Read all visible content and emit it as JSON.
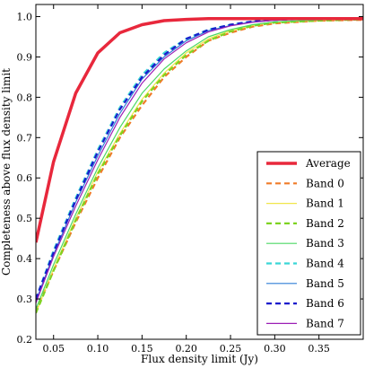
{
  "chart_data": {
    "type": "line",
    "title": "",
    "xlabel": "Flux density limit (Jy)",
    "ylabel": "Completeness above flux density limit",
    "xlim": [
      0.03,
      0.4
    ],
    "ylim": [
      0.2,
      1.03
    ],
    "x_ticks": [
      0.05,
      0.1,
      0.15,
      0.2,
      0.25,
      0.3,
      0.35
    ],
    "x_tick_labels": [
      "0.05",
      "0.10",
      "0.15",
      "0.20",
      "0.25",
      "0.30",
      "0.35"
    ],
    "y_ticks": [
      0.2,
      0.3,
      0.4,
      0.5,
      0.6,
      0.7,
      0.8,
      0.9,
      1.0
    ],
    "y_tick_labels": [
      "0.2",
      "0.3",
      "0.4",
      "0.5",
      "0.6",
      "0.7",
      "0.8",
      "0.9",
      "1.0"
    ],
    "grid": false,
    "legend_position": "bottom-right",
    "x": [
      0.03,
      0.05,
      0.075,
      0.1,
      0.125,
      0.15,
      0.175,
      0.2,
      0.225,
      0.25,
      0.275,
      0.3,
      0.35,
      0.4
    ],
    "series": [
      {
        "name": "Average",
        "color": "#e8283c",
        "style": "solid",
        "width": 3.5,
        "values": [
          0.44,
          0.64,
          0.81,
          0.91,
          0.96,
          0.98,
          0.99,
          0.993,
          0.995,
          0.995,
          0.995,
          0.995,
          0.995,
          0.995
        ]
      },
      {
        "name": "Band 0",
        "color": "#f07b28",
        "style": "dashed",
        "width": 2.2,
        "values": [
          0.27,
          0.37,
          0.49,
          0.6,
          0.7,
          0.78,
          0.85,
          0.9,
          0.94,
          0.96,
          0.975,
          0.983,
          0.99,
          0.992
        ]
      },
      {
        "name": "Band 1",
        "color": "#f0e64a",
        "style": "solid",
        "width": 1.2,
        "values": [
          0.265,
          0.375,
          0.5,
          0.615,
          0.71,
          0.795,
          0.86,
          0.91,
          0.945,
          0.965,
          0.978,
          0.986,
          0.991,
          0.993
        ]
      },
      {
        "name": "Band 2",
        "color": "#7ed321",
        "style": "dashed",
        "width": 2.2,
        "values": [
          0.265,
          0.37,
          0.495,
          0.61,
          0.705,
          0.79,
          0.855,
          0.905,
          0.94,
          0.963,
          0.977,
          0.985,
          0.99,
          0.993
        ]
      },
      {
        "name": "Band 3",
        "color": "#4cd964",
        "style": "solid",
        "width": 1.2,
        "values": [
          0.275,
          0.385,
          0.51,
          0.625,
          0.725,
          0.81,
          0.87,
          0.915,
          0.95,
          0.968,
          0.98,
          0.987,
          0.992,
          0.994
        ]
      },
      {
        "name": "Band 4",
        "color": "#3ad6d6",
        "style": "dashed",
        "width": 2.2,
        "values": [
          0.3,
          0.42,
          0.55,
          0.67,
          0.775,
          0.855,
          0.91,
          0.945,
          0.968,
          0.98,
          0.988,
          0.992,
          0.995,
          0.996
        ]
      },
      {
        "name": "Band 5",
        "color": "#2f7fd6",
        "style": "solid",
        "width": 1.2,
        "values": [
          0.295,
          0.41,
          0.54,
          0.655,
          0.76,
          0.845,
          0.9,
          0.94,
          0.965,
          0.978,
          0.987,
          0.992,
          0.995,
          0.996
        ]
      },
      {
        "name": "Band 6",
        "color": "#1a1acc",
        "style": "dashed",
        "width": 2.2,
        "values": [
          0.3,
          0.415,
          0.545,
          0.665,
          0.77,
          0.85,
          0.905,
          0.945,
          0.967,
          0.98,
          0.988,
          0.992,
          0.995,
          0.996
        ]
      },
      {
        "name": "Band 7",
        "color": "#9b1fb5",
        "style": "solid",
        "width": 1.2,
        "values": [
          0.29,
          0.405,
          0.53,
          0.645,
          0.75,
          0.835,
          0.895,
          0.935,
          0.962,
          0.977,
          0.986,
          0.991,
          0.994,
          0.996
        ]
      }
    ]
  }
}
